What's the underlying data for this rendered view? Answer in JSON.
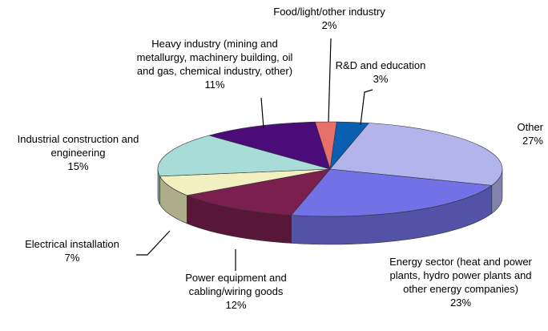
{
  "chart_data": {
    "type": "pie",
    "categories": [
      "Food/light/other industry",
      "R&D and education",
      "Other",
      "Energy sector (heat and power plants, hydro power plants and other energy companies)",
      "Power equipment and cabling/wiring goods",
      "Electrical installation",
      "Industrial construction and engineering",
      "Heavy industry (mining and metallurgy, machinery building, oil and gas, chemical industry, other)"
    ],
    "values": [
      2,
      3,
      27,
      23,
      12,
      7,
      15,
      11
    ],
    "value_labels": [
      "2%",
      "3%",
      "27%",
      "23%",
      "12%",
      "7%",
      "15%",
      "11%"
    ],
    "colors": [
      "#e8706a",
      "#0a5fb0",
      "#b4b4ec",
      "#7272e6",
      "#7a1f4e",
      "#f2f0c0",
      "#a8dcd8",
      "#4a0c78"
    ]
  }
}
